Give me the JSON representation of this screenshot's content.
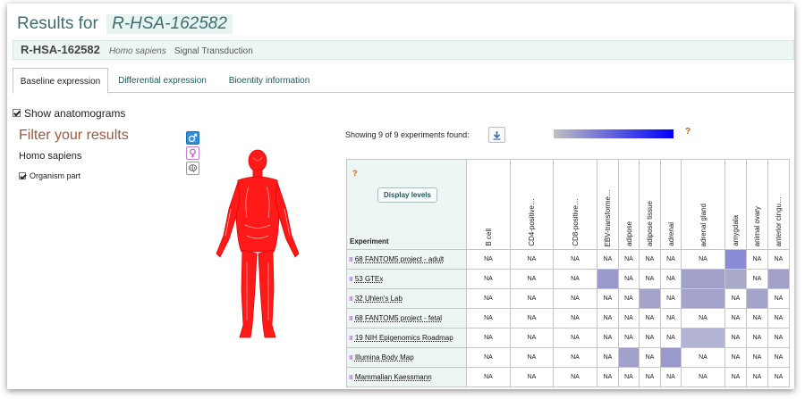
{
  "page": {
    "results_label": "Results for",
    "accession": "R-HSA-162582",
    "entity": {
      "id": "R-HSA-162582",
      "species": "Homo sapiens",
      "category": "Signal Transduction"
    }
  },
  "tabs": [
    {
      "label": "Baseline expression",
      "active": true
    },
    {
      "label": "Differential expression",
      "active": false
    },
    {
      "label": "Bioentity information",
      "active": false
    }
  ],
  "sidebar": {
    "show_anatomograms_label": "Show anatomograms",
    "show_anatomograms_checked": true,
    "filter_title": "Filter your results",
    "species": "Homo sapiens",
    "organism_part_label": "Organism part",
    "organism_part_checked": true,
    "anatomogram_icons": [
      "male-body-icon",
      "female-body-icon",
      "brain-icon"
    ]
  },
  "toolbar": {
    "showing_text": "Showing 9 of 9 experiments found:",
    "download_icon": "download-icon",
    "help_mark": "?"
  },
  "heatmap": {
    "help_mark": "?",
    "display_levels_label": "Display levels",
    "experiment_header": "Experiment",
    "columns": [
      "B cell",
      "CD4-positive…",
      "CD8-positive…",
      "EBV-transforme…",
      "adipose",
      "adipose tissue",
      "adrenal",
      "adrenal gland",
      "amygdala",
      "animal ovary",
      "anterior cingu…"
    ],
    "rows": [
      {
        "label": "68 FANTOM5 project - adult",
        "cells": [
          "NA",
          "NA",
          "NA",
          "NA",
          "NA",
          "NA",
          "NA",
          "NA",
          "#8c8cd6",
          "NA",
          "NA"
        ]
      },
      {
        "label": "53 GTEx",
        "cells": [
          "NA",
          "NA",
          "NA",
          "#9999cc",
          "NA",
          "NA",
          "NA",
          "#a1a1cc",
          "#a9a9c9",
          "NA",
          "#a1a1cc"
        ]
      },
      {
        "label": "32 Uhlen's Lab",
        "cells": [
          "NA",
          "NA",
          "NA",
          "NA",
          "NA",
          "#a3a3cb",
          "NA",
          "#a3a3cb",
          "NA",
          "#a3a3cb",
          "NA"
        ]
      },
      {
        "label": "68 FANTOM5 project - fetal",
        "cells": [
          "NA",
          "NA",
          "NA",
          "NA",
          "NA",
          "NA",
          "NA",
          "NA",
          "NA",
          "NA",
          "NA"
        ]
      },
      {
        "label": "19 NIH Epigenomics Roadmap",
        "cells": [
          "NA",
          "NA",
          "NA",
          "NA",
          "NA",
          "NA",
          "NA",
          "#b3b3d3",
          "NA",
          "NA",
          "NA"
        ]
      },
      {
        "label": "Illumina Body Map",
        "cells": [
          "NA",
          "NA",
          "NA",
          "NA",
          "#a1a1cc",
          "NA",
          "#9999cc",
          "NA",
          "NA",
          "NA",
          "NA"
        ]
      },
      {
        "label": "Mammalian Kaessmann",
        "cells": [
          "NA",
          "NA",
          "NA",
          "NA",
          "NA",
          "NA",
          "NA",
          "NA",
          "NA",
          "NA",
          "NA"
        ]
      }
    ]
  },
  "colors": {
    "gradient_low": "#c0c0c0",
    "gradient_high": "#0000ff",
    "anatomogram_fill": "#ff0000",
    "title_color": "#3c6e70",
    "filter_title_color": "#9a5a42"
  }
}
